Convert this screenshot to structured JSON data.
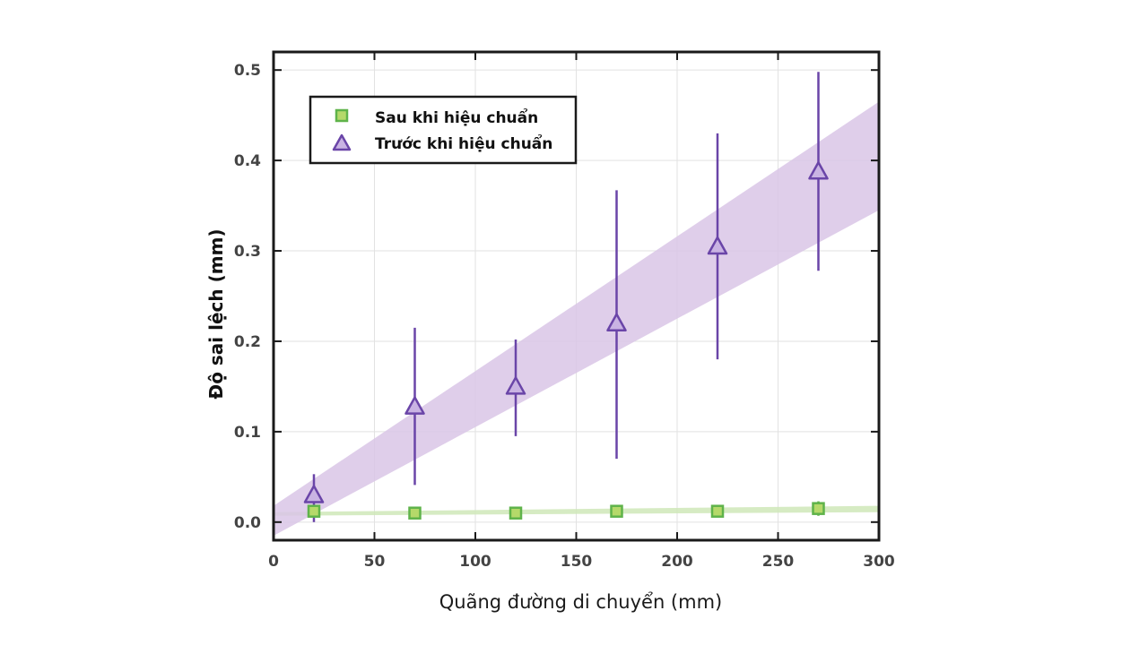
{
  "chart_data": {
    "type": "scatter",
    "xlabel": "Quãng đường di chuyển (mm)",
    "ylabel": "Độ sai lệch (mm)",
    "xlim": [
      0,
      300
    ],
    "ylim": [
      -0.02,
      0.52
    ],
    "xticks": [
      0,
      50,
      100,
      150,
      200,
      250,
      300
    ],
    "yticks": [
      0.0,
      0.1,
      0.2,
      0.3,
      0.4,
      0.5
    ],
    "xtick_labels": [
      "0",
      "50",
      "100",
      "150",
      "200",
      "250",
      "300"
    ],
    "ytick_labels": [
      "0.0",
      "0.1",
      "0.2",
      "0.3",
      "0.4",
      "0.5"
    ],
    "grid": true,
    "legend_position": "top-left",
    "series": [
      {
        "name": "Sau khi hiệu chuẩn",
        "marker": "square",
        "color": "#5fb34a",
        "fill": "#b5d96a",
        "band_color": "#cfe8b8",
        "x": [
          20,
          70,
          120,
          170,
          220,
          270
        ],
        "y": [
          0.012,
          0.01,
          0.01,
          0.012,
          0.012,
          0.015
        ],
        "err_low": [
          0.006,
          0.006,
          0.005,
          0.006,
          0.006,
          0.008
        ],
        "err_high": [
          0.006,
          0.006,
          0.005,
          0.006,
          0.006,
          0.008
        ],
        "band": {
          "x": [
            0,
            300
          ],
          "low": [
            0.007,
            0.011
          ],
          "high": [
            0.011,
            0.018
          ]
        }
      },
      {
        "name": "Trước khi hiệu chuẩn",
        "marker": "triangle",
        "color": "#6a45a8",
        "fill": "#c9b3e3",
        "band_color": "#d9c6e6",
        "x": [
          20,
          70,
          120,
          170,
          220,
          270
        ],
        "y": [
          0.03,
          0.128,
          0.15,
          0.22,
          0.305,
          0.388
        ],
        "err_low": [
          0.03,
          0.087,
          0.055,
          0.15,
          0.125,
          0.11
        ],
        "err_high": [
          0.023,
          0.087,
          0.052,
          0.147,
          0.125,
          0.11
        ],
        "band": {
          "x": [
            0,
            300
          ],
          "low": [
            -0.015,
            0.345
          ],
          "high": [
            0.018,
            0.465
          ]
        }
      }
    ]
  }
}
